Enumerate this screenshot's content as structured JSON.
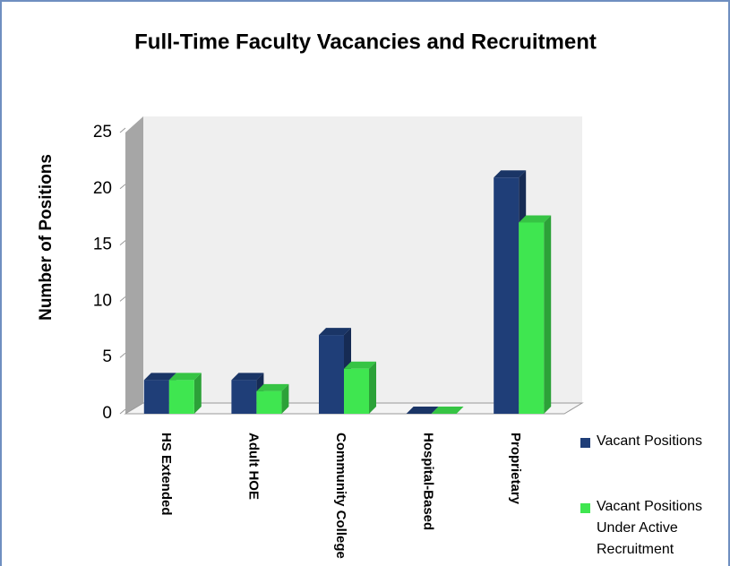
{
  "chart_data": {
    "type": "bar3d",
    "title": "Full-Time Faculty Vacancies and Recruitment",
    "y_label": "Number of Positions",
    "categories": [
      "HS Extended",
      "Adult HOE",
      "Community College",
      "Hospital-Based",
      "Proprietary"
    ],
    "series": [
      {
        "name": "Vacant Positions",
        "color": "#1f3e78",
        "values": [
          3,
          3,
          7,
          0,
          21
        ]
      },
      {
        "name": "Vacant Positions Under Active Recruitment",
        "color": "#3fe650",
        "values": [
          3,
          2,
          4,
          0,
          17
        ]
      }
    ],
    "ylim": [
      0,
      25
    ],
    "yticks": [
      0,
      5,
      10,
      15,
      20,
      25
    ],
    "grid": false,
    "legend": "right"
  }
}
